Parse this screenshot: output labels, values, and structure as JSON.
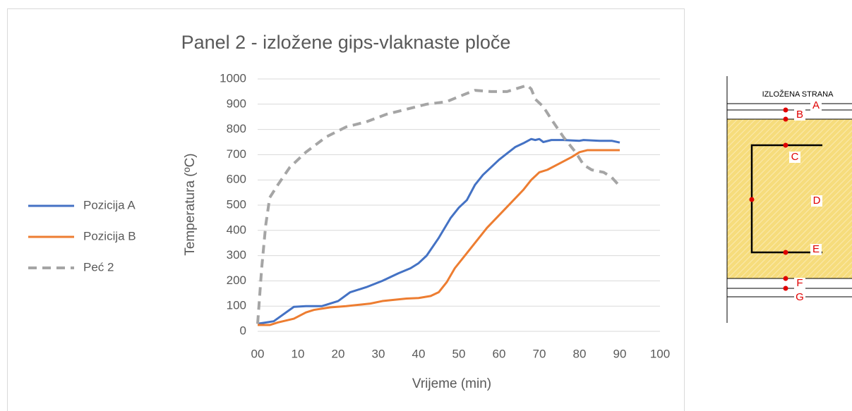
{
  "chart_data": {
    "type": "line",
    "title": "Panel 2 - izložene gips-vlaknaste ploče",
    "xlabel": "Vrijeme (min)",
    "ylabel": "Temperatura (ºC)",
    "xlim": [
      0,
      100
    ],
    "xticks": [
      {
        "value": 0,
        "label": "00"
      },
      10,
      20,
      30,
      40,
      50,
      60,
      70,
      80,
      90,
      100
    ],
    "ylim": [
      0,
      1000
    ],
    "yticks": [
      0,
      100,
      200,
      300,
      400,
      500,
      600,
      700,
      800,
      900,
      1000
    ],
    "grid": true,
    "legend": "left",
    "series": [
      {
        "name": "Pozicija A",
        "color": "#4472c4",
        "dash": false,
        "x": [
          0,
          4,
          9,
          12,
          16,
          20,
          23,
          27,
          31,
          35,
          38,
          40,
          42,
          45,
          48,
          50,
          52,
          54,
          56,
          58,
          60,
          62,
          64,
          66,
          68,
          69,
          70,
          71,
          73,
          76,
          80,
          81,
          85,
          88,
          90
        ],
        "values": [
          30,
          40,
          97,
          100,
          100,
          120,
          155,
          175,
          200,
          230,
          250,
          270,
          300,
          370,
          450,
          490,
          520,
          580,
          620,
          650,
          680,
          705,
          730,
          745,
          762,
          758,
          762,
          750,
          758,
          758,
          755,
          758,
          755,
          755,
          748
        ]
      },
      {
        "name": "Pozicija B",
        "color": "#ed7d31",
        "dash": false,
        "x": [
          0,
          3,
          5,
          9,
          12,
          14,
          18,
          22,
          28,
          31,
          37,
          40,
          43,
          45,
          47,
          49,
          52,
          54,
          57,
          60,
          63,
          66,
          68,
          70,
          72,
          75,
          78,
          80,
          82,
          90
        ],
        "values": [
          25,
          25,
          35,
          50,
          75,
          85,
          95,
          100,
          110,
          120,
          130,
          132,
          140,
          155,
          195,
          250,
          310,
          350,
          410,
          460,
          510,
          560,
          600,
          630,
          640,
          665,
          690,
          710,
          718,
          718
        ]
      },
      {
        "name": "Peć 2",
        "color": "#a5a5a5",
        "dash": true,
        "x": [
          0,
          1,
          2,
          3,
          5,
          8,
          12,
          17,
          22,
          27,
          32,
          37,
          42,
          47,
          50,
          54,
          58,
          62,
          65,
          67,
          68,
          69,
          71,
          73,
          76,
          79,
          81,
          83,
          86,
          88,
          90
        ],
        "values": [
          30,
          250,
          420,
          530,
          580,
          650,
          710,
          770,
          810,
          830,
          860,
          880,
          900,
          910,
          930,
          955,
          950,
          950,
          965,
          975,
          960,
          920,
          890,
          840,
          770,
          710,
          660,
          640,
          630,
          610,
          575
        ]
      }
    ]
  },
  "diagram": {
    "header": "IZLOŽENA STRANA",
    "labels": [
      "A",
      "B",
      "C",
      "D",
      "E",
      "F",
      "G"
    ]
  }
}
